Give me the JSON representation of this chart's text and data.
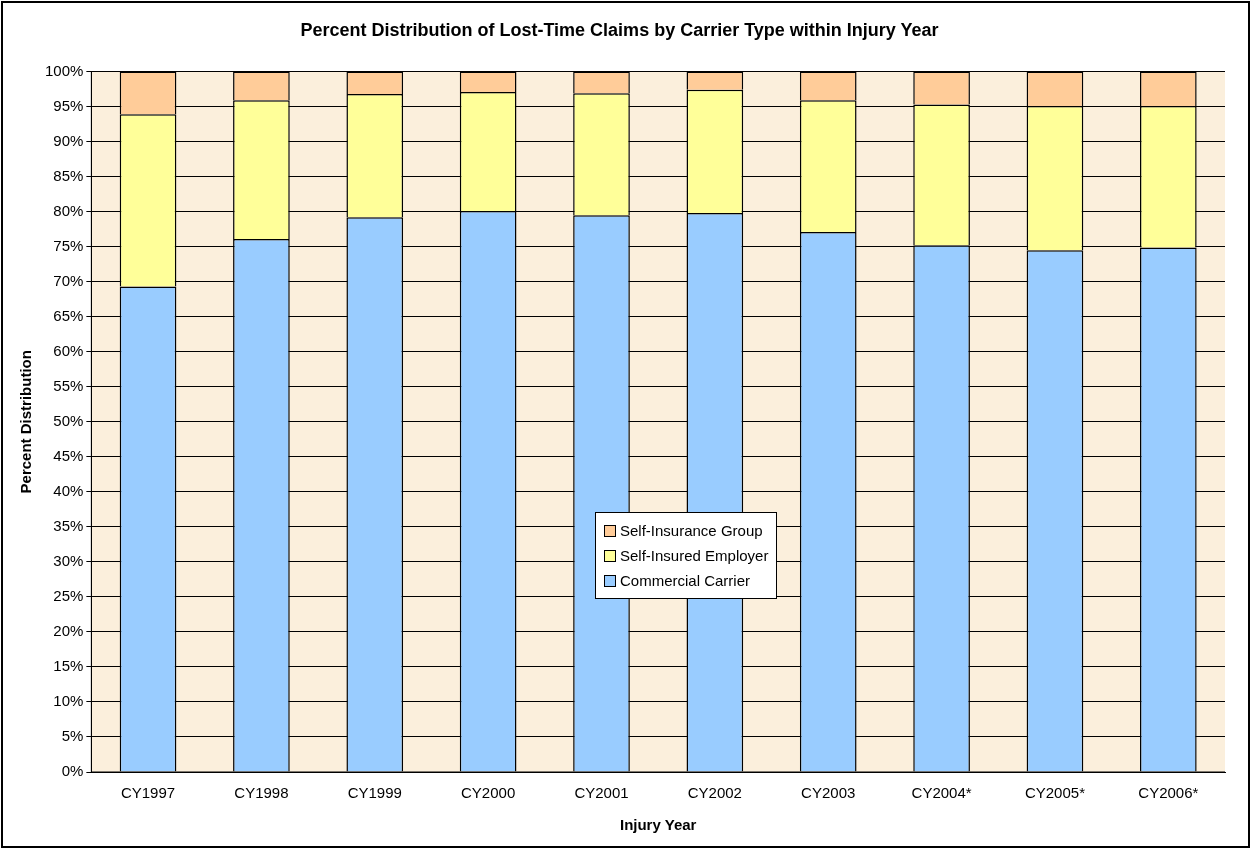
{
  "chart_data": {
    "type": "bar",
    "title": "Percent Distribution of Lost-Time Claims by Carrier Type within Injury Year",
    "xlabel": "Injury Year",
    "ylabel": "Percent Distribution",
    "categories": [
      "CY1997",
      "CY1998",
      "CY1999",
      "CY2000",
      "CY2001",
      "CY2002",
      "CY2003",
      "CY2004*",
      "CY2005*",
      "CY2006*"
    ],
    "stacked": true,
    "grid": "y",
    "legend": "center",
    "ylim": [
      0,
      100
    ],
    "yticks": [
      {
        "value": 0,
        "label": "0%"
      },
      {
        "value": 5,
        "label": "5%"
      },
      {
        "value": 10,
        "label": "10%"
      },
      {
        "value": 15,
        "label": "15%"
      },
      {
        "value": 20,
        "label": "20%"
      },
      {
        "value": 25,
        "label": "25%"
      },
      {
        "value": 30,
        "label": "30%"
      },
      {
        "value": 35,
        "label": "35%"
      },
      {
        "value": 40,
        "label": "40%"
      },
      {
        "value": 45,
        "label": "45%"
      },
      {
        "value": 50,
        "label": "50%"
      },
      {
        "value": 55,
        "label": "55%"
      },
      {
        "value": 60,
        "label": "60%"
      },
      {
        "value": 65,
        "label": "65%"
      },
      {
        "value": 70,
        "label": "70%"
      },
      {
        "value": 75,
        "label": "75%"
      },
      {
        "value": 80,
        "label": "80%"
      },
      {
        "value": 85,
        "label": "85%"
      },
      {
        "value": 90,
        "label": "90%"
      },
      {
        "value": 95,
        "label": "95%"
      },
      {
        "value": 100,
        "label": "100%"
      }
    ],
    "series": [
      {
        "name": "Commercial Carrier",
        "color": "#99ccff",
        "values": [
          69.3,
          76.1,
          79.2,
          80.1,
          79.5,
          79.8,
          77.1,
          75.2,
          74.5,
          74.9
        ]
      },
      {
        "name": "Self-Insured Employer",
        "color": "#ffff99",
        "values": [
          24.6,
          19.8,
          17.6,
          17.0,
          17.4,
          17.6,
          18.8,
          20.1,
          20.6,
          20.2
        ]
      },
      {
        "name": "Self-Insurance Group",
        "color": "#ffcc99",
        "values": [
          6.1,
          4.1,
          3.2,
          2.9,
          3.1,
          2.6,
          4.1,
          4.7,
          4.9,
          4.9
        ]
      }
    ]
  }
}
